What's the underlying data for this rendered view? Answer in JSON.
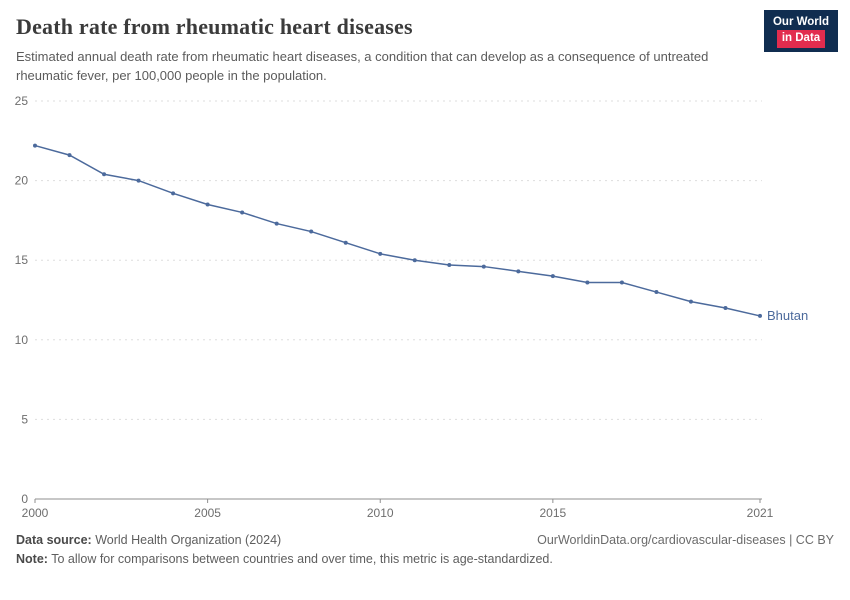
{
  "logo": {
    "line1": "Our World",
    "line2": "in Data"
  },
  "header": {
    "title": "Death rate from rheumatic heart diseases",
    "subtitle": "Estimated annual death rate from rheumatic heart diseases, a condition that can develop as a consequence of untreated rheumatic fever, per 100,000 people in the population."
  },
  "chart_data": {
    "type": "line",
    "title": "Death rate from rheumatic heart diseases",
    "xlabel": "",
    "ylabel": "",
    "xlim": [
      2000,
      2021
    ],
    "ylim": [
      0,
      25
    ],
    "xticks": [
      2000,
      2005,
      2010,
      2015,
      2021
    ],
    "yticks": [
      0,
      5,
      10,
      15,
      20,
      25
    ],
    "grid": "horizontal-dashed",
    "legend_position": "end-of-line",
    "x": [
      2000,
      2001,
      2002,
      2003,
      2004,
      2005,
      2006,
      2007,
      2008,
      2009,
      2010,
      2011,
      2012,
      2013,
      2014,
      2015,
      2016,
      2017,
      2018,
      2019,
      2020,
      2021
    ],
    "series": [
      {
        "name": "Bhutan",
        "color": "#4c6a9c",
        "values": [
          22.2,
          21.6,
          20.4,
          20.0,
          19.2,
          18.5,
          18.0,
          17.3,
          16.8,
          16.1,
          15.4,
          15.0,
          14.7,
          14.6,
          14.3,
          14.0,
          13.6,
          13.6,
          13.0,
          12.4,
          12.0,
          11.5
        ]
      }
    ],
    "colors": {
      "grid": "#dddddd",
      "axis": "#8f8f8f",
      "tick_text": "#6e6e6e"
    }
  },
  "footer": {
    "source_label": "Data source:",
    "source_text": " World Health Organization (2024)",
    "link_text": "OurWorldinData.org/cardiovascular-diseases | CC BY",
    "note_label": "Note:",
    "note_text": " To allow for comparisons between countries and over time, this metric is age-standardized."
  }
}
